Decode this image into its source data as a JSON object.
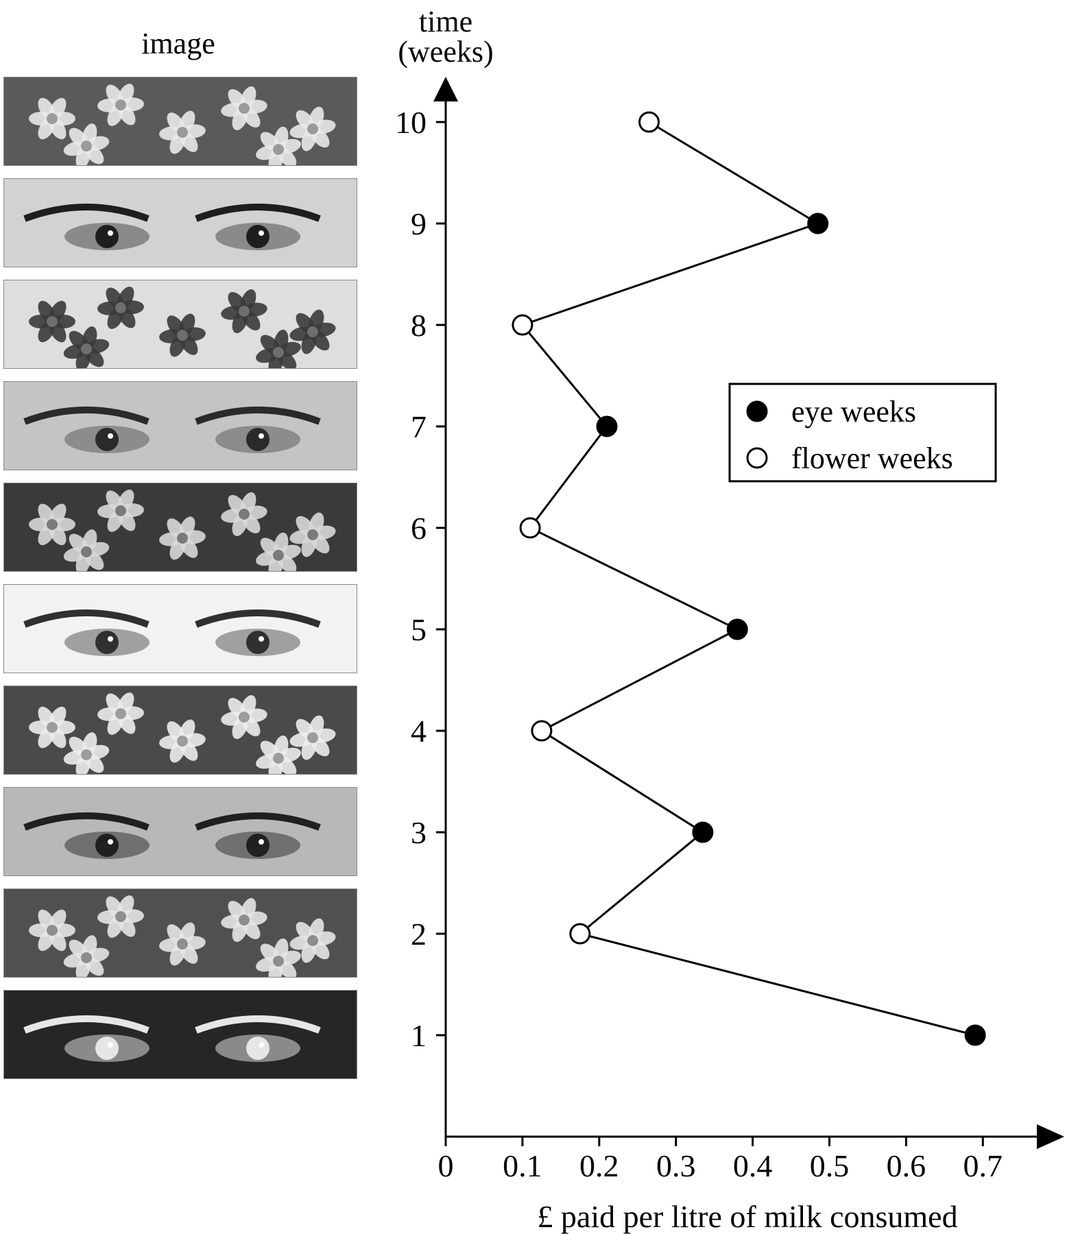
{
  "image_column_heading": "image",
  "strips": [
    {
      "week": 10,
      "kind": "flower",
      "palette": {
        "bg": "#5a5a5a",
        "fg": "#e8e8e8",
        "mid": "#9a9a9a"
      }
    },
    {
      "week": 9,
      "kind": "eye",
      "palette": {
        "bg": "#d2d2d2",
        "fg": "#1e1e1e",
        "mid": "#8a8a8a"
      }
    },
    {
      "week": 8,
      "kind": "flower",
      "palette": {
        "bg": "#dedede",
        "fg": "#3a3a3a",
        "mid": "#6e6e6e"
      }
    },
    {
      "week": 7,
      "kind": "eye",
      "palette": {
        "bg": "#c4c4c4",
        "fg": "#2a2a2a",
        "mid": "#8c8c8c"
      }
    },
    {
      "week": 6,
      "kind": "flower",
      "palette": {
        "bg": "#3a3a3a",
        "fg": "#d8d8d8",
        "mid": "#7a7a7a"
      }
    },
    {
      "week": 5,
      "kind": "eye",
      "palette": {
        "bg": "#f2f2f2",
        "fg": "#303030",
        "mid": "#a0a0a0"
      }
    },
    {
      "week": 4,
      "kind": "flower",
      "palette": {
        "bg": "#4a4a4a",
        "fg": "#ececec",
        "mid": "#9c9c9c"
      }
    },
    {
      "week": 3,
      "kind": "eye",
      "palette": {
        "bg": "#b8b8b8",
        "fg": "#202020",
        "mid": "#707070"
      }
    },
    {
      "week": 2,
      "kind": "flower",
      "palette": {
        "bg": "#505050",
        "fg": "#e4e4e4",
        "mid": "#8e8e8e"
      }
    },
    {
      "week": 1,
      "kind": "eye",
      "palette": {
        "bg": "#262626",
        "fg": "#e6e6e6",
        "mid": "#8a8a8a"
      }
    }
  ],
  "chart_data": {
    "type": "line",
    "ylabel": "time\n(weeks)",
    "xlabel": "£ paid per litre of milk consumed",
    "xlim": [
      0,
      0.75
    ],
    "ylim": [
      0,
      10.7
    ],
    "x_ticks": [
      "0",
      "0.1",
      "0.2",
      "0.3",
      "0.4",
      "0.5",
      "0.6",
      "0.7"
    ],
    "x_tick_values": [
      0,
      0.1,
      0.2,
      0.3,
      0.4,
      0.5,
      0.6,
      0.7
    ],
    "y_ticks": [
      "1",
      "2",
      "3",
      "4",
      "5",
      "6",
      "7",
      "8",
      "9",
      "10"
    ],
    "y_tick_values": [
      1,
      2,
      3,
      4,
      5,
      6,
      7,
      8,
      9,
      10
    ],
    "grid": false,
    "legend_position": "right, upper-middle",
    "series": [
      {
        "name": "eye weeks",
        "marker": "filled-circle",
        "points": [
          {
            "week": 1,
            "value": 0.69
          },
          {
            "week": 3,
            "value": 0.335
          },
          {
            "week": 5,
            "value": 0.38
          },
          {
            "week": 7,
            "value": 0.21
          },
          {
            "week": 9,
            "value": 0.485
          }
        ]
      },
      {
        "name": "flower weeks",
        "marker": "open-circle",
        "points": [
          {
            "week": 2,
            "value": 0.175
          },
          {
            "week": 4,
            "value": 0.125
          },
          {
            "week": 6,
            "value": 0.11
          },
          {
            "week": 8,
            "value": 0.1
          },
          {
            "week": 10,
            "value": 0.265
          }
        ]
      }
    ],
    "connected_order": "by week"
  }
}
